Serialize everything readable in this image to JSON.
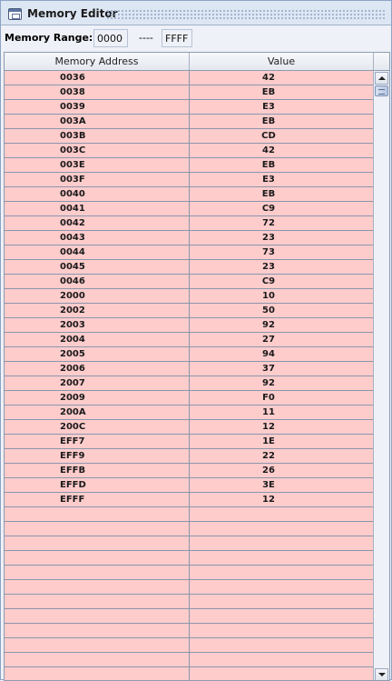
{
  "window": {
    "title": "Memory Editor"
  },
  "range": {
    "label": "Memory Range:",
    "from": "0000",
    "separator": "----",
    "to": "FFFF"
  },
  "table": {
    "columns": [
      "Memory Address",
      "Value"
    ],
    "rows": [
      [
        "0036",
        "42"
      ],
      [
        "0038",
        "EB"
      ],
      [
        "0039",
        "E3"
      ],
      [
        "003A",
        "EB"
      ],
      [
        "003B",
        "CD"
      ],
      [
        "003C",
        "42"
      ],
      [
        "003E",
        "EB"
      ],
      [
        "003F",
        "E3"
      ],
      [
        "0040",
        "EB"
      ],
      [
        "0041",
        "C9"
      ],
      [
        "0042",
        "72"
      ],
      [
        "0043",
        "23"
      ],
      [
        "0044",
        "73"
      ],
      [
        "0045",
        "23"
      ],
      [
        "0046",
        "C9"
      ],
      [
        "2000",
        "10"
      ],
      [
        "2002",
        "50"
      ],
      [
        "2003",
        "92"
      ],
      [
        "2004",
        "27"
      ],
      [
        "2005",
        "94"
      ],
      [
        "2006",
        "37"
      ],
      [
        "2007",
        "92"
      ],
      [
        "2009",
        "F0"
      ],
      [
        "200A",
        "11"
      ],
      [
        "200C",
        "12"
      ],
      [
        "EFF7",
        "1E"
      ],
      [
        "EFF9",
        "22"
      ],
      [
        "EFFB",
        "26"
      ],
      [
        "EFFD",
        "3E"
      ],
      [
        "EFFF",
        "12"
      ],
      [
        "",
        ""
      ],
      [
        "",
        ""
      ],
      [
        "",
        ""
      ],
      [
        "",
        ""
      ],
      [
        "",
        ""
      ],
      [
        "",
        ""
      ],
      [
        "",
        ""
      ],
      [
        "",
        ""
      ],
      [
        "",
        ""
      ],
      [
        "",
        ""
      ],
      [
        "",
        ""
      ],
      [
        "",
        ""
      ]
    ]
  },
  "colors": {
    "row_background": "#ffcccc",
    "window_background": "#eef1f7",
    "title_bar": "#dde6f3"
  },
  "icons": {
    "window": "window-icon",
    "scroll_up": "arrow-up-icon",
    "scroll_down": "arrow-down-icon"
  }
}
